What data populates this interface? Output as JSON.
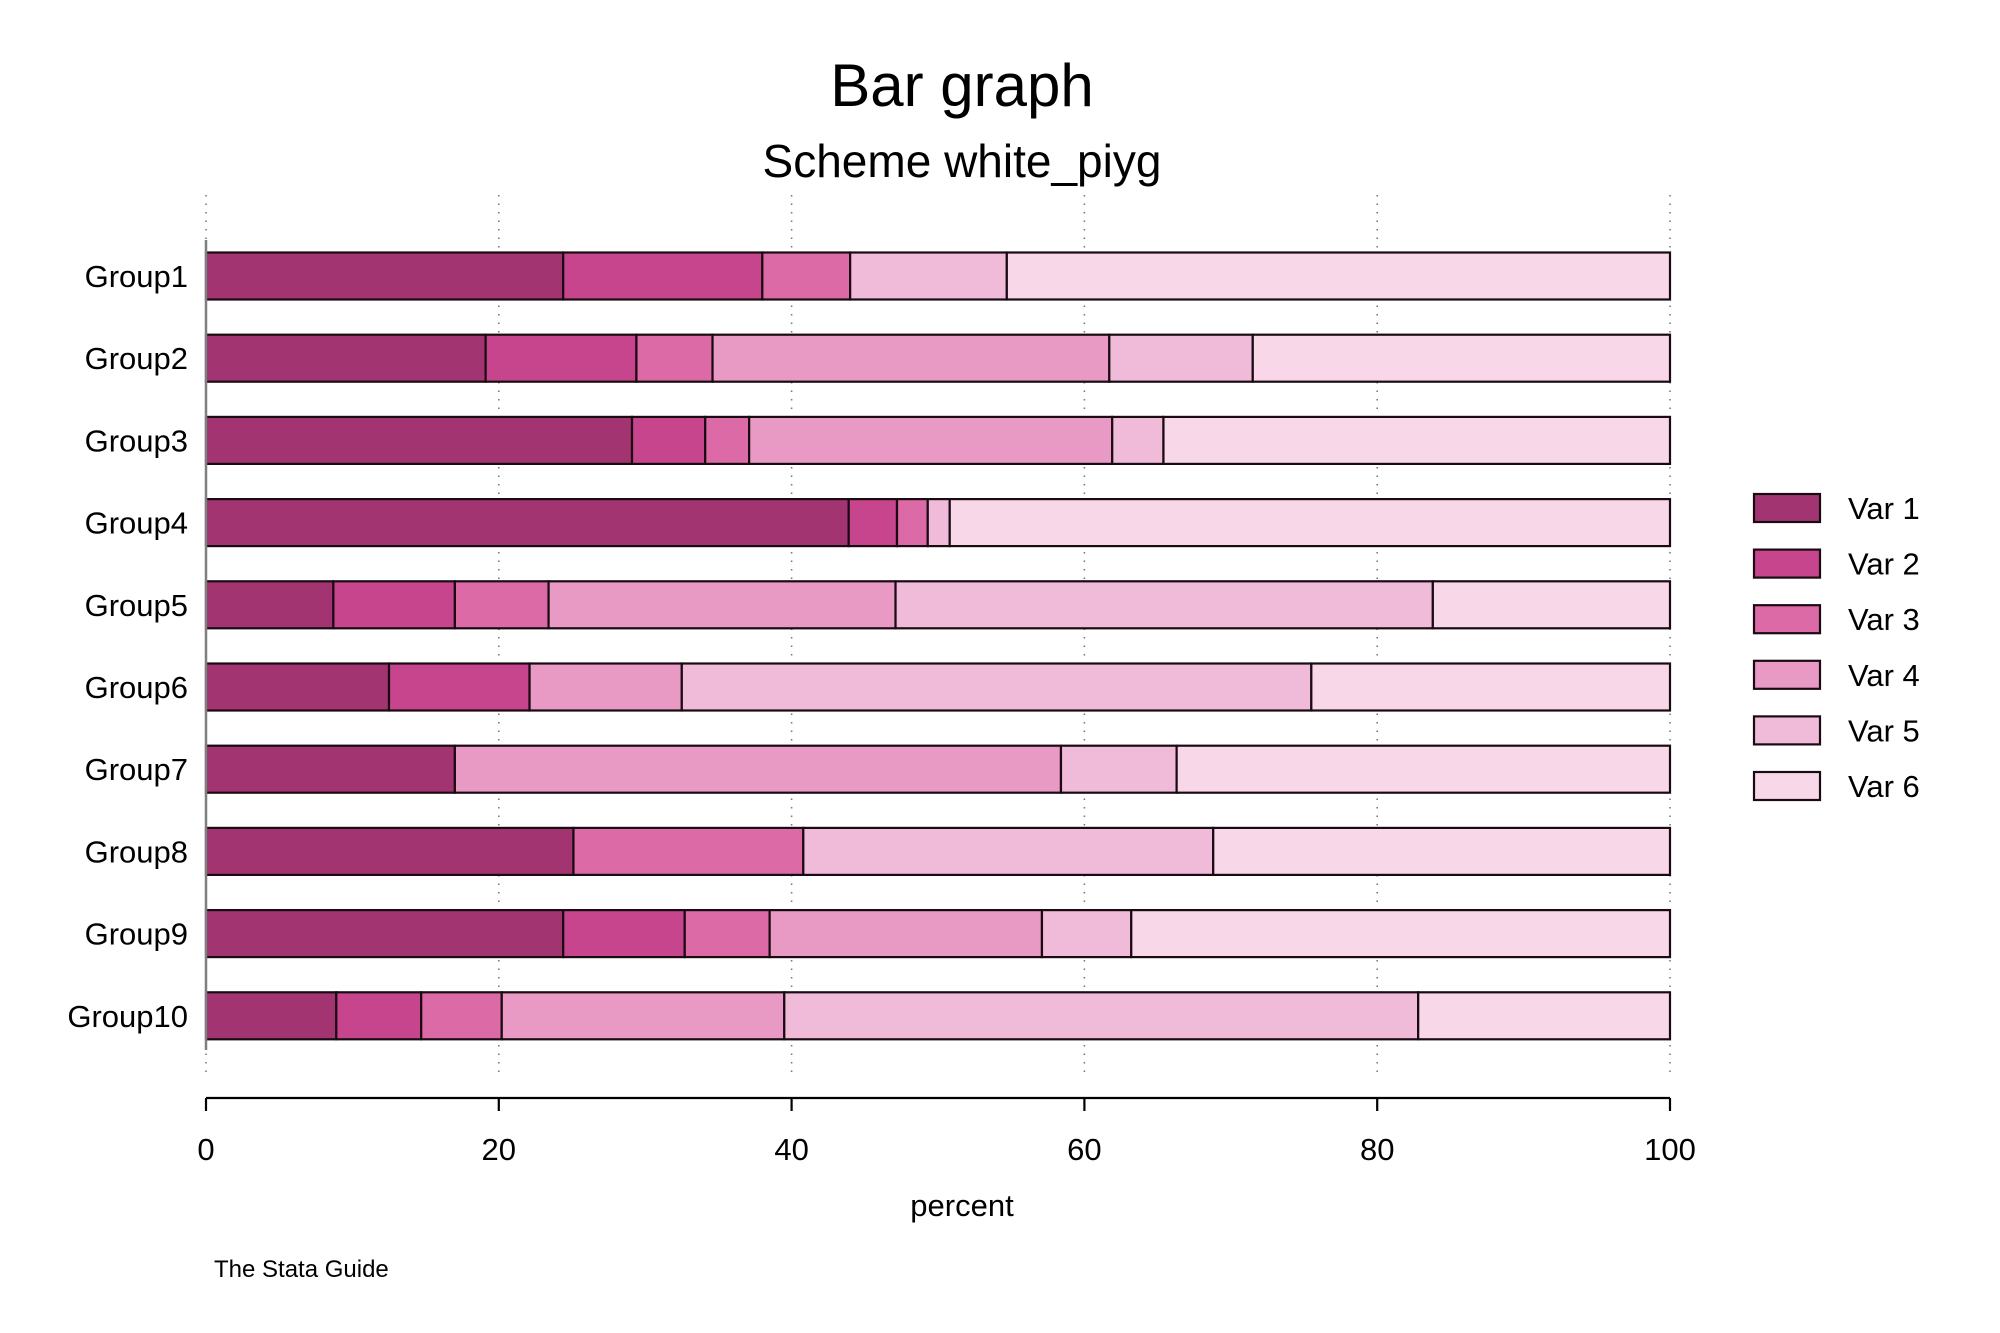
{
  "chart_data": {
    "type": "bar",
    "orientation": "horizontal",
    "stacked": true,
    "title": "Bar graph",
    "subtitle": "Scheme white_piyg",
    "xlabel": "percent",
    "note": "The Stata Guide",
    "xlim": [
      0,
      100
    ],
    "xticks": [
      "0",
      "20",
      "40",
      "60",
      "80",
      "100"
    ],
    "xtick_values": [
      0,
      20,
      40,
      60,
      80,
      100
    ],
    "grid": "vertical dotted",
    "legend_position": "right",
    "categories": [
      "Group1",
      "Group2",
      "Group3",
      "Group4",
      "Group5",
      "Group6",
      "Group7",
      "Group8",
      "Group9",
      "Group10"
    ],
    "series": [
      {
        "name": "Var 1",
        "color": "#a33472",
        "values": [
          24.4,
          19.1,
          29.1,
          43.9,
          8.7,
          12.5,
          17.0,
          25.1,
          24.4,
          8.9
        ]
      },
      {
        "name": "Var 2",
        "color": "#c6458c",
        "values": [
          13.6,
          10.3,
          5.0,
          3.3,
          8.3,
          9.6,
          0,
          0,
          8.3,
          5.8
        ]
      },
      {
        "name": "Var 3",
        "color": "#dc6aa7",
        "values": [
          6.0,
          5.2,
          3.0,
          2.1,
          6.4,
          0,
          0,
          15.7,
          5.8,
          5.5
        ]
      },
      {
        "name": "Var 4",
        "color": "#e899c4",
        "values": [
          0,
          27.1,
          24.8,
          0,
          23.7,
          10.4,
          41.4,
          0,
          18.6,
          19.3
        ]
      },
      {
        "name": "Var 5",
        "color": "#f0bbd9",
        "values": [
          10.7,
          9.8,
          3.5,
          1.5,
          36.7,
          43.0,
          7.9,
          28.0,
          6.1,
          43.3
        ]
      },
      {
        "name": "Var 6",
        "color": "#f8d8e8",
        "values": [
          45.3,
          28.5,
          34.6,
          49.2,
          16.2,
          24.5,
          33.7,
          31.2,
          36.8,
          17.2
        ]
      }
    ]
  }
}
